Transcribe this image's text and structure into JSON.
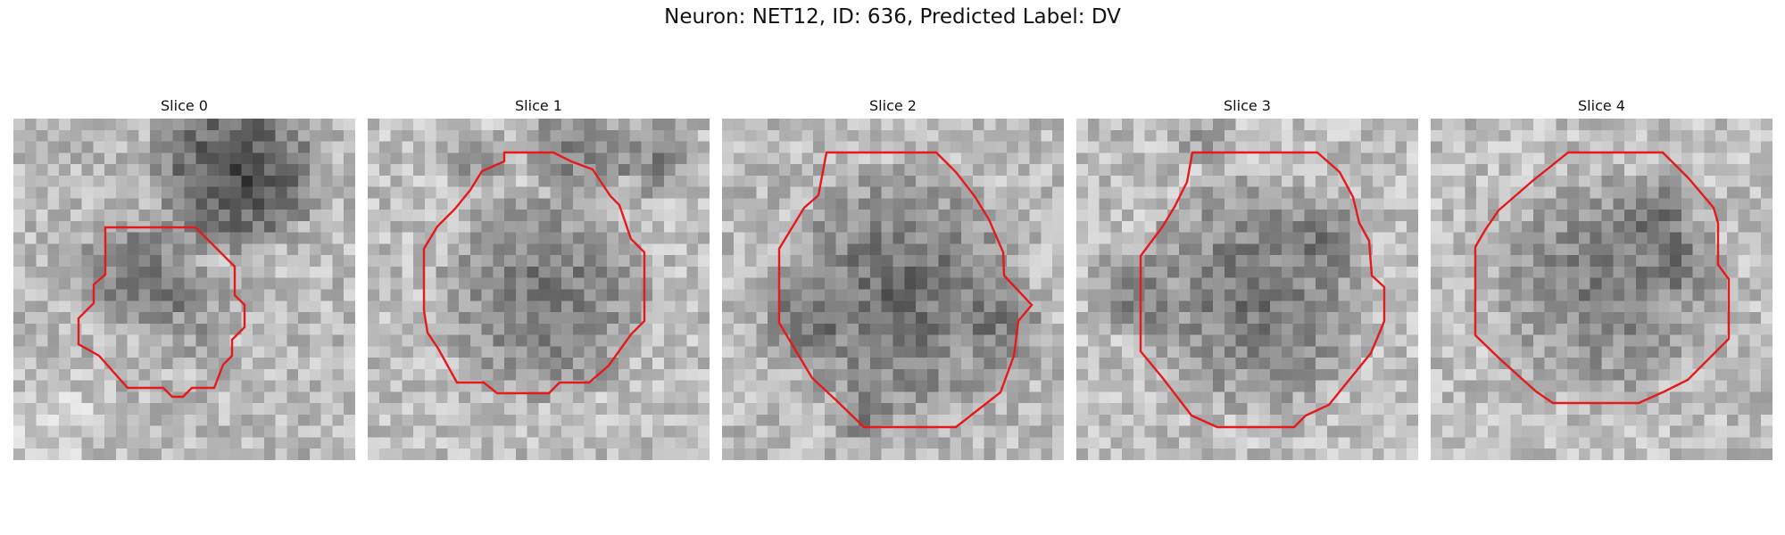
{
  "figure": {
    "title": "Neuron: NET12, ID: 636, Predicted Label: DV",
    "contour_color": "#e41a1c",
    "colormap": "gray"
  },
  "slices": [
    {
      "title": "Slice 0"
    },
    {
      "title": "Slice 1"
    },
    {
      "title": "Slice 2"
    },
    {
      "title": "Slice 3"
    },
    {
      "title": "Slice 4"
    }
  ]
}
